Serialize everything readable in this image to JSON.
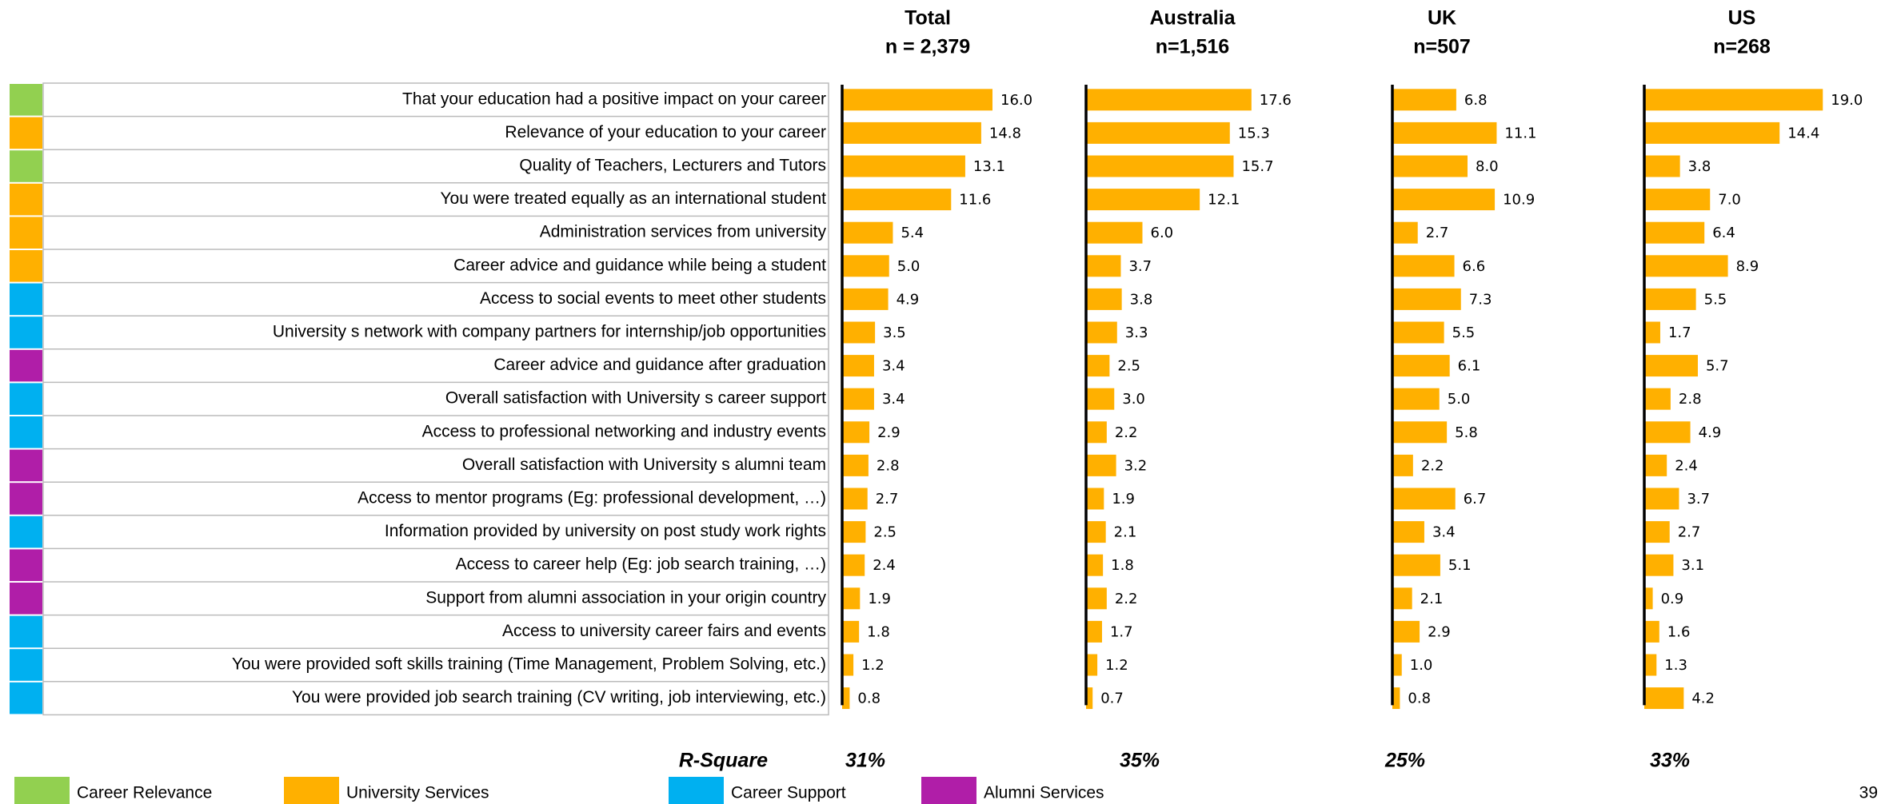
{
  "chart_data": {
    "type": "bar",
    "categories": [
      "That your education had a positive impact on your career",
      "Relevance of your education to your career",
      "Quality of Teachers, Lecturers and Tutors",
      "You were treated equally as an international student",
      "Administration services from university",
      "Career advice and guidance while being a student",
      "Access to social events to meet other students",
      "University s network with company partners for internship/job opportunities",
      "Career advice and guidance after graduation",
      "Overall satisfaction with University s career support",
      "Access to professional networking and industry events",
      "Overall satisfaction with University s alumni team",
      "Access to mentor programs (Eg: professional development, …)",
      "Information provided by university on post study work rights",
      "Access to career help (Eg: job search training, …)",
      "Support from alumni association in your origin country",
      "Access to university career fairs and events",
      "You were provided soft skills training (Time Management, Problem Solving, etc.)",
      "You were provided job search training (CV writing, job interviewing, etc.)"
    ],
    "category_groups": [
      0,
      1,
      0,
      1,
      1,
      1,
      2,
      2,
      3,
      2,
      2,
      3,
      3,
      2,
      3,
      3,
      2,
      2,
      2
    ],
    "legend": [
      {
        "name": "Career Relevance",
        "color": "#92D050"
      },
      {
        "name": "University Services",
        "color": "#FFB000"
      },
      {
        "name": "Career Support",
        "color": "#00B0F0"
      },
      {
        "name": "Alumni Services",
        "color": "#B01EA8"
      }
    ],
    "color": "#FFB000",
    "xlim": [
      0,
      20
    ],
    "r_square_title": "R-Square",
    "page_number": "39",
    "series": [
      {
        "name": "Total",
        "subtitle": "n = 2,379",
        "r_square": {
          "value": 31,
          "label": "31%"
        },
        "values": [
          16.0,
          14.8,
          13.1,
          11.6,
          5.4,
          5.0,
          4.9,
          3.5,
          3.4,
          3.4,
          2.9,
          2.8,
          2.7,
          2.5,
          2.4,
          1.9,
          1.8,
          1.2,
          0.8
        ],
        "value_labels": [
          "16.0",
          "14.8",
          "13.1",
          "11.6",
          "5.4",
          "5.0",
          "4.9",
          "3.5",
          "3.4",
          "3.4",
          "2.9",
          "2.8",
          "2.7",
          "2.5",
          "2.4",
          "1.9",
          "1.8",
          "1.2",
          "0.8"
        ]
      },
      {
        "name": "Australia",
        "subtitle": "n=1,516",
        "r_square": {
          "value": 35,
          "label": "35%"
        },
        "values": [
          17.6,
          15.3,
          15.7,
          12.1,
          6.0,
          3.7,
          3.8,
          3.3,
          2.5,
          3.0,
          2.2,
          3.2,
          1.9,
          2.1,
          1.8,
          2.2,
          1.7,
          1.2,
          0.7
        ],
        "value_labels": [
          "17.6",
          "15.3",
          "15.7",
          "12.1",
          "6.0",
          "3.7",
          "3.8",
          "3.3",
          "2.5",
          "3.0",
          "2.2",
          "3.2",
          "1.9",
          "2.1",
          "1.8",
          "2.2",
          "1.7",
          "1.2",
          "0.7"
        ]
      },
      {
        "name": "UK",
        "subtitle": "n=507",
        "r_square": {
          "value": 25,
          "label": "25%"
        },
        "values": [
          6.8,
          11.1,
          8.0,
          10.9,
          2.7,
          6.6,
          7.3,
          5.5,
          6.1,
          5.0,
          5.8,
          2.2,
          6.7,
          3.4,
          5.1,
          2.1,
          2.9,
          1.0,
          0.8
        ],
        "value_labels": [
          "6.8",
          "11.1",
          "8.0",
          "10.9",
          "2.7",
          "6.6",
          "7.3",
          "5.5",
          "6.1",
          "5.0",
          "5.8",
          "2.2",
          "6.7",
          "3.4",
          "5.1",
          "2.1",
          "2.9",
          "1.0",
          "0.8"
        ]
      },
      {
        "name": "US",
        "subtitle": "n=268",
        "r_square": {
          "value": 33,
          "label": "33%"
        },
        "values": [
          19.0,
          14.4,
          3.8,
          7.0,
          6.4,
          8.9,
          5.5,
          1.7,
          5.7,
          2.8,
          4.9,
          2.4,
          3.7,
          2.7,
          3.1,
          0.9,
          1.6,
          1.3,
          4.2
        ],
        "value_labels": [
          "19.0",
          "14.4",
          "3.8",
          "7.0",
          "6.4",
          "8.9",
          "5.5",
          "1.7",
          "5.7",
          "2.8",
          "4.9",
          "2.4",
          "3.7",
          "2.7",
          "3.1",
          "0.9",
          "1.6",
          "1.3",
          "4.2"
        ]
      }
    ]
  }
}
